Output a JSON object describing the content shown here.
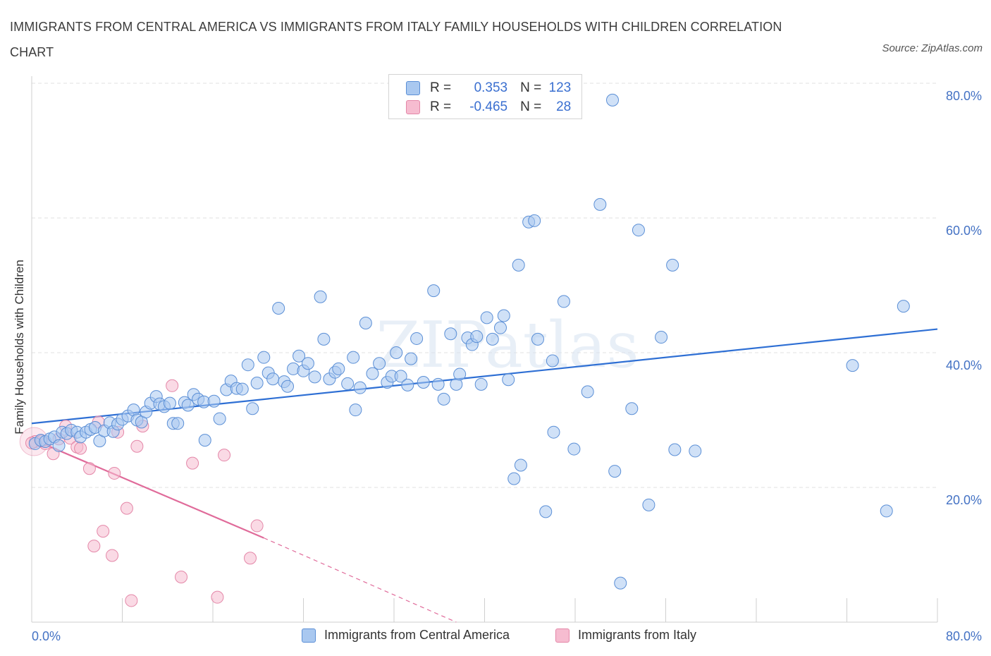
{
  "title": "IMMIGRANTS FROM CENTRAL AMERICA VS IMMIGRANTS FROM ITALY FAMILY HOUSEHOLDS WITH CHILDREN CORRELATION CHART",
  "source": "Source: ZipAtlas.com",
  "watermark": "ZIPatlas",
  "legend": {
    "series1": {
      "r_label": "R =",
      "r_value": "0.353",
      "n_label": "N =",
      "n_value": "123"
    },
    "series2": {
      "r_label": "R =",
      "r_value": "-0.465",
      "n_label": "N =",
      "n_value": "28"
    }
  },
  "colors": {
    "blue_fill": "#a9c8f0",
    "blue_stroke": "#5b8fd6",
    "blue_line": "#2e6fd4",
    "pink_fill": "#f6bcd0",
    "pink_stroke": "#e487a8",
    "pink_line": "#e06b9a",
    "tick": "#4472c4",
    "grid": "#e2e2e2"
  },
  "chart_data": {
    "type": "scatter",
    "title": "IMMIGRANTS FROM CENTRAL AMERICA VS IMMIGRANTS FROM ITALY FAMILY HOUSEHOLDS WITH CHILDREN CORRELATION CHART",
    "xlabel": "",
    "ylabel": "Family Households with Children",
    "xlim": [
      0,
      80
    ],
    "ylim": [
      0,
      80
    ],
    "x_tick_labels": [
      {
        "value": 0,
        "label": "0.0%"
      },
      {
        "value": 80,
        "label": "80.0%"
      }
    ],
    "y_tick_labels": [
      {
        "value": 20,
        "label": "20.0%"
      },
      {
        "value": 40,
        "label": "40.0%"
      },
      {
        "value": 60,
        "label": "60.0%"
      },
      {
        "value": 80,
        "label": "80.0%"
      }
    ],
    "grid": true,
    "series": [
      {
        "name": "Immigrants from Central America",
        "color": "blue",
        "trend": {
          "x": [
            0,
            80
          ],
          "y": [
            29.5,
            43.5
          ],
          "dashed_from": null
        },
        "points": [
          [
            0.3,
            26.5
          ],
          [
            0.8,
            27.0
          ],
          [
            1.2,
            26.8
          ],
          [
            1.6,
            27.2
          ],
          [
            2.0,
            27.5
          ],
          [
            2.4,
            26.2
          ],
          [
            2.7,
            28.2
          ],
          [
            3.1,
            28.0
          ],
          [
            3.5,
            28.5
          ],
          [
            4.0,
            28.2
          ],
          [
            4.3,
            27.5
          ],
          [
            4.8,
            28.2
          ],
          [
            5.2,
            28.6
          ],
          [
            5.6,
            28.9
          ],
          [
            6.0,
            26.9
          ],
          [
            6.4,
            28.4
          ],
          [
            6.9,
            29.6
          ],
          [
            7.2,
            28.3
          ],
          [
            7.6,
            29.4
          ],
          [
            8.0,
            30.1
          ],
          [
            8.5,
            30.6
          ],
          [
            9.0,
            31.5
          ],
          [
            9.3,
            30.0
          ],
          [
            9.7,
            29.7
          ],
          [
            10.1,
            31.2
          ],
          [
            10.5,
            32.5
          ],
          [
            11.0,
            33.5
          ],
          [
            11.3,
            32.4
          ],
          [
            11.7,
            32.0
          ],
          [
            12.2,
            32.5
          ],
          [
            12.5,
            29.5
          ],
          [
            12.9,
            29.5
          ],
          [
            13.5,
            32.6
          ],
          [
            13.8,
            32.2
          ],
          [
            14.3,
            33.8
          ],
          [
            14.7,
            33.1
          ],
          [
            15.2,
            32.7
          ],
          [
            15.3,
            27.0
          ],
          [
            16.1,
            32.8
          ],
          [
            16.6,
            30.2
          ],
          [
            17.2,
            34.5
          ],
          [
            17.6,
            35.8
          ],
          [
            18.1,
            34.7
          ],
          [
            18.6,
            34.6
          ],
          [
            19.1,
            38.2
          ],
          [
            19.5,
            31.7
          ],
          [
            19.9,
            35.5
          ],
          [
            20.5,
            39.3
          ],
          [
            20.9,
            37.0
          ],
          [
            21.3,
            36.1
          ],
          [
            21.8,
            46.6
          ],
          [
            22.3,
            35.7
          ],
          [
            22.6,
            35.0
          ],
          [
            23.1,
            37.6
          ],
          [
            23.6,
            39.5
          ],
          [
            24.0,
            37.3
          ],
          [
            24.4,
            38.4
          ],
          [
            25.0,
            36.4
          ],
          [
            25.5,
            48.3
          ],
          [
            25.8,
            42.0
          ],
          [
            26.3,
            36.1
          ],
          [
            26.8,
            37.1
          ],
          [
            27.1,
            37.6
          ],
          [
            27.9,
            35.4
          ],
          [
            28.4,
            39.3
          ],
          [
            28.6,
            31.5
          ],
          [
            29.0,
            34.8
          ],
          [
            29.5,
            44.4
          ],
          [
            30.1,
            36.9
          ],
          [
            30.7,
            38.4
          ],
          [
            31.4,
            35.6
          ],
          [
            31.8,
            36.5
          ],
          [
            32.2,
            40.0
          ],
          [
            32.6,
            36.5
          ],
          [
            33.2,
            35.2
          ],
          [
            33.5,
            39.1
          ],
          [
            34.0,
            42.1
          ],
          [
            34.6,
            35.6
          ],
          [
            35.5,
            49.2
          ],
          [
            35.9,
            35.3
          ],
          [
            36.4,
            33.1
          ],
          [
            37.0,
            42.8
          ],
          [
            37.5,
            35.3
          ],
          [
            37.8,
            36.8
          ],
          [
            38.5,
            42.2
          ],
          [
            38.9,
            41.2
          ],
          [
            39.3,
            42.4
          ],
          [
            39.7,
            35.3
          ],
          [
            40.2,
            45.2
          ],
          [
            40.7,
            42.0
          ],
          [
            41.4,
            43.7
          ],
          [
            41.7,
            45.5
          ],
          [
            42.1,
            36.0
          ],
          [
            42.6,
            21.3
          ],
          [
            43.0,
            53.0
          ],
          [
            43.2,
            23.3
          ],
          [
            43.9,
            59.4
          ],
          [
            44.4,
            59.6
          ],
          [
            44.7,
            42.0
          ],
          [
            45.4,
            16.4
          ],
          [
            46.0,
            38.8
          ],
          [
            46.1,
            28.2
          ],
          [
            47.0,
            47.6
          ],
          [
            47.9,
            25.7
          ],
          [
            49.1,
            34.2
          ],
          [
            50.2,
            62.0
          ],
          [
            51.3,
            77.5
          ],
          [
            51.5,
            22.4
          ],
          [
            52.0,
            5.8
          ],
          [
            53.0,
            31.7
          ],
          [
            53.6,
            58.2
          ],
          [
            54.5,
            17.4
          ],
          [
            55.6,
            42.3
          ],
          [
            56.6,
            53.0
          ],
          [
            56.8,
            25.6
          ],
          [
            58.6,
            25.4
          ],
          [
            72.5,
            38.1
          ],
          [
            75.5,
            16.5
          ],
          [
            77.0,
            46.9
          ]
        ]
      },
      {
        "name": "Immigrants from Italy",
        "color": "pink",
        "trend": {
          "x": [
            0,
            20.5
          ],
          "y": [
            27.2,
            12.5
          ],
          "dashed_to": [
            37.5,
            0
          ]
        },
        "points": [
          [
            0.3,
            26.8
          ],
          [
            1.2,
            26.5
          ],
          [
            1.9,
            25.0
          ],
          [
            2.4,
            27.2
          ],
          [
            3.0,
            29.1
          ],
          [
            3.4,
            27.3
          ],
          [
            4.0,
            26.0
          ],
          [
            4.3,
            25.8
          ],
          [
            5.1,
            22.8
          ],
          [
            5.5,
            11.3
          ],
          [
            5.9,
            29.7
          ],
          [
            6.3,
            13.5
          ],
          [
            7.1,
            9.9
          ],
          [
            7.3,
            22.1
          ],
          [
            7.6,
            28.2
          ],
          [
            8.4,
            16.9
          ],
          [
            8.8,
            3.2
          ],
          [
            9.3,
            26.1
          ],
          [
            9.8,
            29.1
          ],
          [
            12.4,
            35.1
          ],
          [
            13.2,
            6.7
          ],
          [
            14.2,
            23.6
          ],
          [
            16.4,
            3.7
          ],
          [
            17.0,
            24.8
          ],
          [
            19.3,
            9.5
          ],
          [
            19.9,
            14.3
          ],
          [
            0.0,
            26.6
          ],
          [
            0.9,
            26.9
          ]
        ]
      }
    ]
  },
  "bottom_legend": {
    "item1": "Immigrants from Central America",
    "item2": "Immigrants from Italy"
  }
}
